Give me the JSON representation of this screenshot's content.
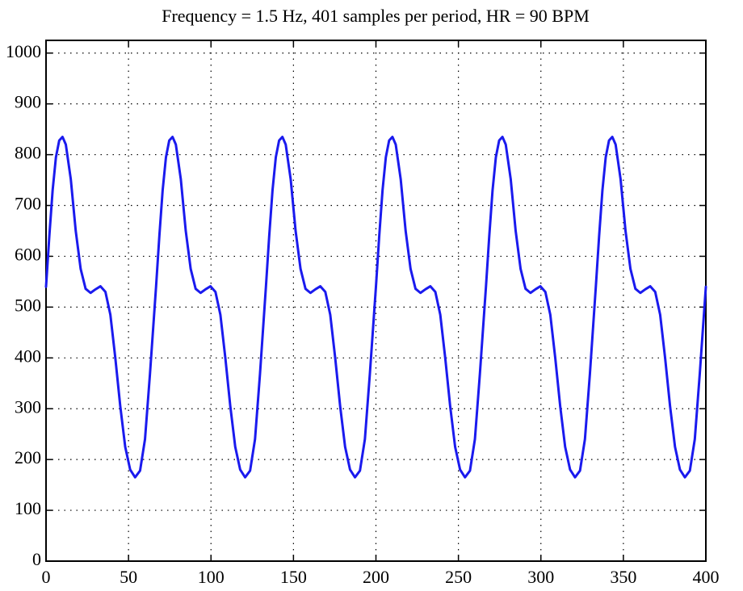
{
  "chart_data": {
    "type": "line",
    "title": "Frequency = 1.5 Hz, 401 samples per period, HR = 90 BPM",
    "x": [
      0,
      2,
      4,
      6,
      8,
      10,
      12,
      15,
      18,
      21,
      24,
      27,
      30,
      33,
      36,
      39,
      42,
      45,
      48,
      51,
      54,
      57,
      60,
      63,
      66.7,
      68.7,
      70.7,
      72.7,
      74.7,
      76.7,
      78.7,
      81.7,
      84.7,
      87.7,
      90.7,
      93.7,
      96.7,
      99.7,
      102.7,
      105.7,
      108.7,
      111.7,
      114.7,
      117.7,
      120.7,
      123.7,
      126.7,
      129.7,
      133.3,
      135.3,
      137.3,
      139.3,
      141.3,
      143.3,
      145.3,
      148.3,
      151.3,
      154.3,
      157.3,
      160.3,
      163.3,
      166.3,
      169.3,
      172.3,
      175.3,
      178.3,
      181.3,
      184.3,
      187.3,
      190.3,
      193.3,
      196.3,
      200,
      202,
      204,
      206,
      208,
      210,
      212,
      215,
      218,
      221,
      224,
      227,
      230,
      233,
      236,
      239,
      242,
      245,
      248,
      251,
      254,
      257,
      260,
      263,
      266.7,
      268.7,
      270.7,
      272.7,
      274.7,
      276.7,
      278.7,
      281.7,
      284.7,
      287.7,
      290.7,
      293.7,
      296.7,
      299.7,
      302.7,
      305.7,
      308.7,
      311.7,
      314.7,
      317.7,
      320.7,
      323.7,
      326.7,
      329.7,
      333.3,
      335.3,
      337.3,
      339.3,
      341.3,
      343.3,
      345.3,
      348.3,
      351.3,
      354.3,
      357.3,
      360.3,
      363.3,
      366.3,
      369.3,
      372.3,
      375.3,
      378.3,
      381.3,
      384.3,
      387.3,
      390.3,
      393.3,
      396.3,
      400
    ],
    "series": [
      {
        "color": "#1a1aee",
        "values": [
          540,
          640,
          730,
          795,
          828,
          835,
          820,
          752,
          650,
          575,
          536,
          528,
          535,
          541,
          530,
          485,
          400,
          305,
          225,
          180,
          165,
          178,
          240,
          368,
          540,
          640,
          730,
          795,
          828,
          835,
          820,
          752,
          650,
          575,
          536,
          528,
          535,
          541,
          530,
          485,
          400,
          305,
          225,
          180,
          165,
          178,
          240,
          368,
          540,
          640,
          730,
          795,
          828,
          835,
          820,
          752,
          650,
          575,
          536,
          528,
          535,
          541,
          530,
          485,
          400,
          305,
          225,
          180,
          165,
          178,
          240,
          368,
          540,
          640,
          730,
          795,
          828,
          835,
          820,
          752,
          650,
          575,
          536,
          528,
          535,
          541,
          530,
          485,
          400,
          305,
          225,
          180,
          165,
          178,
          240,
          368,
          540,
          640,
          730,
          795,
          828,
          835,
          820,
          752,
          650,
          575,
          536,
          528,
          535,
          541,
          530,
          485,
          400,
          305,
          225,
          180,
          165,
          178,
          240,
          368,
          540,
          640,
          730,
          795,
          828,
          835,
          820,
          752,
          650,
          575,
          536,
          528,
          535,
          541,
          530,
          485,
          400,
          305,
          225,
          180,
          165,
          178,
          240,
          368,
          540
        ]
      }
    ],
    "xlim": [
      0,
      400
    ],
    "xticks": [
      0,
      50,
      100,
      150,
      200,
      250,
      300,
      350,
      400
    ],
    "ylim": [
      0,
      1025
    ],
    "yticks": [
      0,
      100,
      200,
      300,
      400,
      500,
      600,
      700,
      800,
      900,
      1000
    ],
    "grid": true
  }
}
